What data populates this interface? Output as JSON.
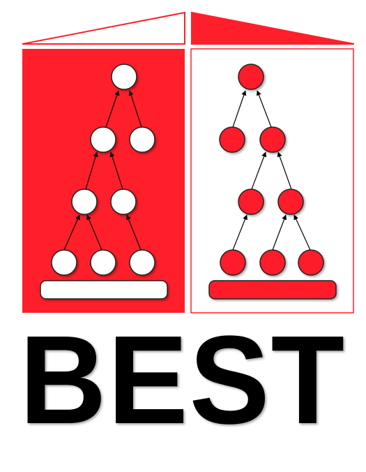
{
  "logo": {
    "wordmark": "BEST",
    "colors": {
      "accent": "#ff1f2a",
      "background": "#ffffff",
      "outline": "#222222",
      "text": "#000000"
    },
    "left_panel": {
      "fill": "red",
      "node_fill": "white",
      "levels": [
        1,
        2,
        2,
        3
      ]
    },
    "right_panel": {
      "fill": "white",
      "node_fill": "red",
      "levels": [
        1,
        2,
        2,
        3
      ]
    }
  }
}
